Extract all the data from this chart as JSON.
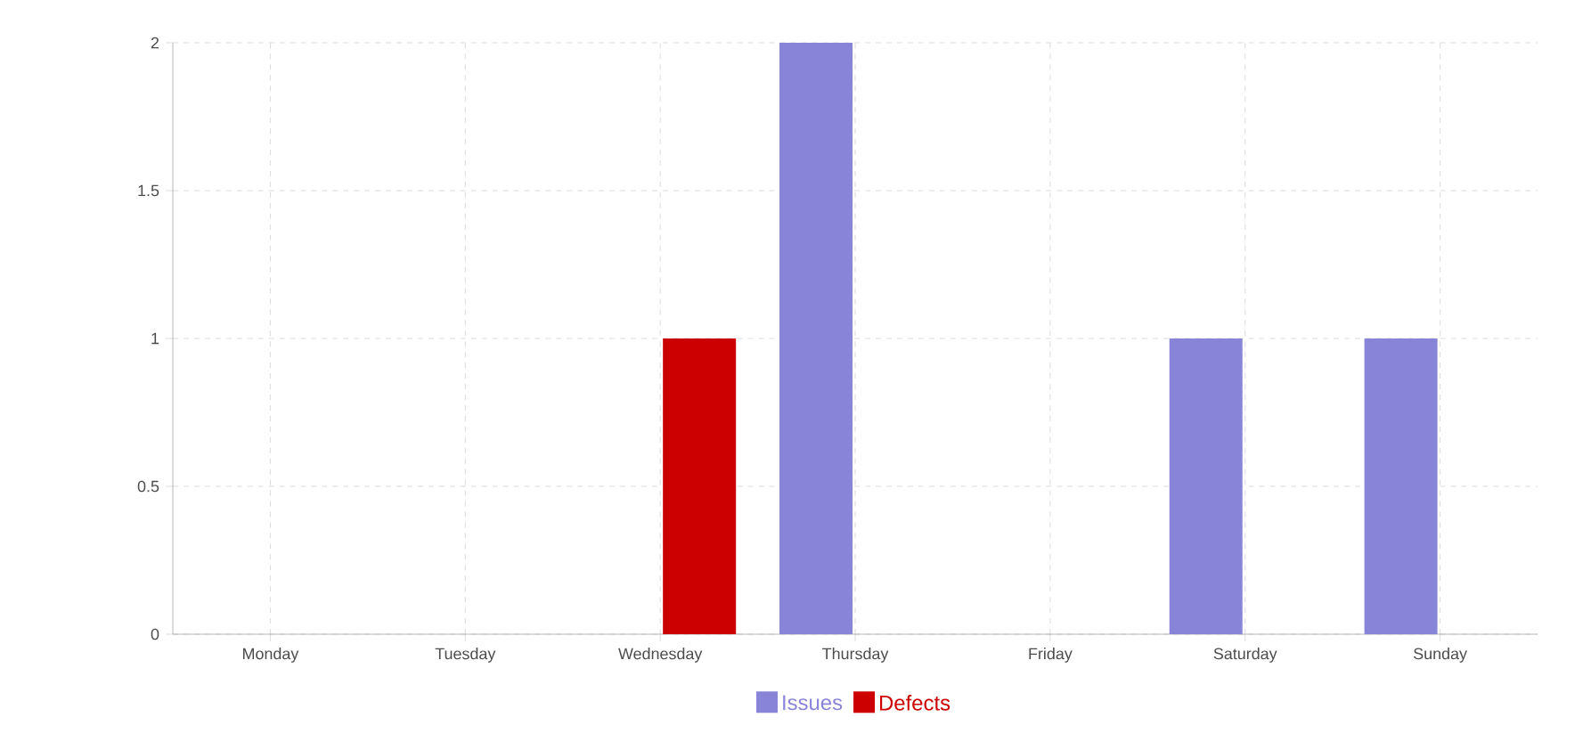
{
  "chart_data": {
    "type": "bar",
    "categories": [
      "Monday",
      "Tuesday",
      "Wednesday",
      "Thursday",
      "Friday",
      "Saturday",
      "Sunday"
    ],
    "series": [
      {
        "name": "Issues",
        "color": "#8884d8",
        "values": [
          0,
          0,
          0,
          2,
          0,
          1,
          1
        ]
      },
      {
        "name": "Defects",
        "color": "#cc0000",
        "values": [
          0,
          0,
          1,
          0,
          0,
          0,
          0
        ]
      }
    ],
    "ylim": [
      0,
      2
    ],
    "yticks": [
      0,
      0.5,
      1,
      1.5,
      2
    ],
    "grid": true,
    "legend": "bottom"
  }
}
